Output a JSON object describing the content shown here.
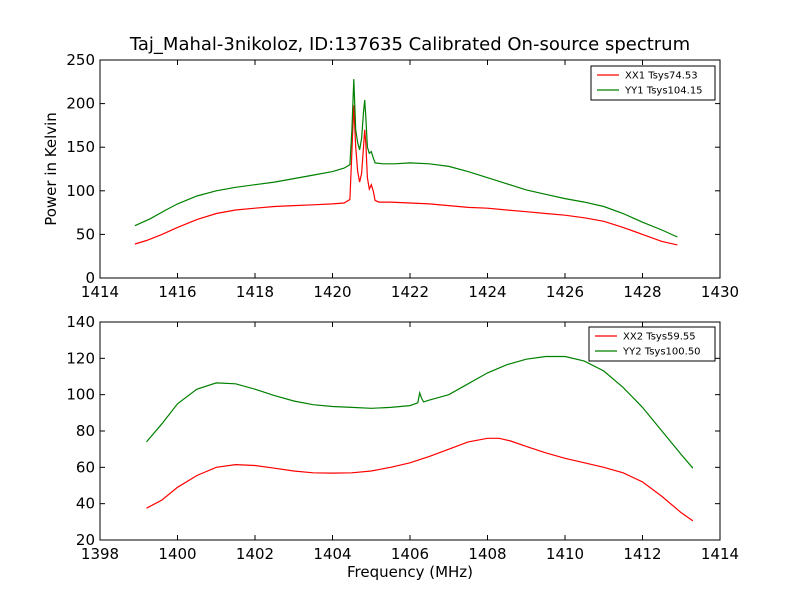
{
  "title": "Taj_Mahal-3nikoloz, ID:137635 Calibrated On-source spectrum",
  "colors": {
    "red": "#ff0000",
    "green": "#008000"
  },
  "chart_data": [
    {
      "type": "line",
      "xlabel": "",
      "ylabel": "Power in Kelvin",
      "xlim": [
        1414,
        1430
      ],
      "ylim": [
        0,
        250
      ],
      "xticks": [
        "1414",
        "1416",
        "1418",
        "1420",
        "1422",
        "1424",
        "1426",
        "1428",
        "1430"
      ],
      "yticks": [
        "0",
        "50",
        "100",
        "150",
        "200",
        "250"
      ],
      "legend_position": "top-right",
      "grid": false,
      "series": [
        {
          "name": "XX1 Tsys74.53",
          "color": "#ff0000",
          "points": [
            [
              1414.9,
              39
            ],
            [
              1415.2,
              43
            ],
            [
              1415.6,
              50
            ],
            [
              1416,
              58
            ],
            [
              1416.5,
              67
            ],
            [
              1417,
              74
            ],
            [
              1417.5,
              78
            ],
            [
              1418,
              80
            ],
            [
              1418.5,
              82
            ],
            [
              1419,
              83
            ],
            [
              1419.5,
              84
            ],
            [
              1420,
              85
            ],
            [
              1420.3,
              86
            ],
            [
              1420.45,
              90
            ],
            [
              1420.5,
              145
            ],
            [
              1420.55,
              198
            ],
            [
              1420.6,
              150
            ],
            [
              1420.65,
              122
            ],
            [
              1420.7,
              110
            ],
            [
              1420.75,
              120
            ],
            [
              1420.8,
              150
            ],
            [
              1420.83,
              170
            ],
            [
              1420.86,
              155
            ],
            [
              1420.9,
              115
            ],
            [
              1420.95,
              102
            ],
            [
              1421,
              107
            ],
            [
              1421.05,
              100
            ],
            [
              1421.1,
              89
            ],
            [
              1421.2,
              87
            ],
            [
              1421.5,
              87
            ],
            [
              1422,
              86
            ],
            [
              1422.5,
              85
            ],
            [
              1423,
              83
            ],
            [
              1423.5,
              81
            ],
            [
              1424,
              80
            ],
            [
              1424.5,
              78
            ],
            [
              1425,
              76
            ],
            [
              1425.5,
              74
            ],
            [
              1426,
              72
            ],
            [
              1426.5,
              69
            ],
            [
              1427,
              65
            ],
            [
              1427.5,
              58
            ],
            [
              1428,
              50
            ],
            [
              1428.5,
              42
            ],
            [
              1428.9,
              38
            ]
          ]
        },
        {
          "name": "YY1 Tsys104.15",
          "color": "#008000",
          "points": [
            [
              1414.9,
              60
            ],
            [
              1415.3,
              68
            ],
            [
              1415.7,
              78
            ],
            [
              1416,
              85
            ],
            [
              1416.5,
              94
            ],
            [
              1417,
              100
            ],
            [
              1417.5,
              104
            ],
            [
              1418,
              107
            ],
            [
              1418.5,
              110
            ],
            [
              1419,
              114
            ],
            [
              1419.5,
              118
            ],
            [
              1420,
              122
            ],
            [
              1420.3,
              126
            ],
            [
              1420.45,
              130
            ],
            [
              1420.5,
              170
            ],
            [
              1420.55,
              228
            ],
            [
              1420.6,
              170
            ],
            [
              1420.65,
              155
            ],
            [
              1420.7,
              147
            ],
            [
              1420.75,
              160
            ],
            [
              1420.8,
              190
            ],
            [
              1420.83,
              204
            ],
            [
              1420.86,
              185
            ],
            [
              1420.9,
              150
            ],
            [
              1420.95,
              143
            ],
            [
              1421,
              145
            ],
            [
              1421.05,
              138
            ],
            [
              1421.1,
              132
            ],
            [
              1421.3,
              131
            ],
            [
              1421.6,
              131
            ],
            [
              1422,
              132
            ],
            [
              1422.5,
              131
            ],
            [
              1423,
              128
            ],
            [
              1423.5,
              122
            ],
            [
              1424,
              115
            ],
            [
              1424.5,
              108
            ],
            [
              1425,
              101
            ],
            [
              1425.5,
              96
            ],
            [
              1426,
              91
            ],
            [
              1426.5,
              87
            ],
            [
              1427,
              82
            ],
            [
              1427.5,
              74
            ],
            [
              1428,
              64
            ],
            [
              1428.5,
              55
            ],
            [
              1428.9,
              47
            ]
          ]
        }
      ]
    },
    {
      "type": "line",
      "xlabel": "Frequency (MHz)",
      "ylabel": "",
      "xlim": [
        1398,
        1414
      ],
      "ylim": [
        20,
        140
      ],
      "xticks": [
        "1398",
        "1400",
        "1402",
        "1404",
        "1406",
        "1408",
        "1410",
        "1412",
        "1414"
      ],
      "yticks": [
        "20",
        "40",
        "60",
        "80",
        "100",
        "120",
        "140"
      ],
      "legend_position": "top-right",
      "grid": false,
      "series": [
        {
          "name": "XX2 Tsys59.55",
          "color": "#ff0000",
          "points": [
            [
              1399.2,
              37.5
            ],
            [
              1399.6,
              42
            ],
            [
              1400,
              49
            ],
            [
              1400.5,
              55.5
            ],
            [
              1401,
              60
            ],
            [
              1401.5,
              61.5
            ],
            [
              1402,
              61
            ],
            [
              1402.5,
              59.5
            ],
            [
              1403,
              58
            ],
            [
              1403.5,
              57
            ],
            [
              1404,
              56.8
            ],
            [
              1404.5,
              57
            ],
            [
              1405,
              58
            ],
            [
              1405.5,
              60
            ],
            [
              1406,
              62.5
            ],
            [
              1406.5,
              66
            ],
            [
              1407,
              70
            ],
            [
              1407.5,
              74
            ],
            [
              1408,
              76
            ],
            [
              1408.3,
              76
            ],
            [
              1408.6,
              74.5
            ],
            [
              1409,
              71.5
            ],
            [
              1409.5,
              68
            ],
            [
              1410,
              65
            ],
            [
              1410.5,
              62.5
            ],
            [
              1411,
              60
            ],
            [
              1411.5,
              57
            ],
            [
              1412,
              52
            ],
            [
              1412.5,
              44
            ],
            [
              1413,
              35
            ],
            [
              1413.3,
              30.5
            ]
          ]
        },
        {
          "name": "YY2 Tsys100.50",
          "color": "#008000",
          "points": [
            [
              1399.2,
              74
            ],
            [
              1399.6,
              84
            ],
            [
              1400,
              95
            ],
            [
              1400.5,
              103
            ],
            [
              1401,
              106.5
            ],
            [
              1401.5,
              106
            ],
            [
              1402,
              103
            ],
            [
              1402.5,
              99.5
            ],
            [
              1403,
              96.5
            ],
            [
              1403.5,
              94.5
            ],
            [
              1404,
              93.5
            ],
            [
              1404.5,
              93
            ],
            [
              1405,
              92.5
            ],
            [
              1405.5,
              93
            ],
            [
              1406,
              94
            ],
            [
              1406.2,
              95.5
            ],
            [
              1406.25,
              101
            ],
            [
              1406.3,
              98
            ],
            [
              1406.35,
              96
            ],
            [
              1406.5,
              97
            ],
            [
              1407,
              100
            ],
            [
              1407.5,
              106
            ],
            [
              1408,
              112
            ],
            [
              1408.5,
              116.5
            ],
            [
              1409,
              119.5
            ],
            [
              1409.5,
              121
            ],
            [
              1410,
              121
            ],
            [
              1410.5,
              118.5
            ],
            [
              1411,
              113
            ],
            [
              1411.5,
              104
            ],
            [
              1412,
              93
            ],
            [
              1412.5,
              80
            ],
            [
              1413,
              67
            ],
            [
              1413.3,
              59.5
            ]
          ]
        }
      ]
    }
  ]
}
